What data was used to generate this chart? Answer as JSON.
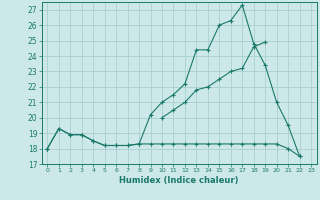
{
  "xlabel": "Humidex (Indice chaleur)",
  "background_color": "#cce8e8",
  "grid_color": "#aad0d0",
  "line_color": "#1a7a6a",
  "xlim": [
    -0.5,
    23.5
  ],
  "ylim": [
    17,
    27.5
  ],
  "xticks": [
    0,
    1,
    2,
    3,
    4,
    5,
    6,
    7,
    8,
    9,
    10,
    11,
    12,
    13,
    14,
    15,
    16,
    17,
    18,
    19,
    20,
    21,
    22,
    23
  ],
  "yticks": [
    17,
    18,
    19,
    20,
    21,
    22,
    23,
    24,
    25,
    26,
    27
  ],
  "series": [
    [
      18.0,
      19.3,
      18.9,
      18.9,
      18.5,
      18.2,
      18.2,
      18.2,
      18.3,
      20.2,
      21.0,
      21.5,
      22.2,
      24.4,
      24.4,
      26.0,
      26.3,
      27.3,
      24.8,
      23.4,
      21.0,
      19.5,
      17.5,
      null
    ],
    [
      18.0,
      19.3,
      18.9,
      18.9,
      18.5,
      18.2,
      18.2,
      18.2,
      18.3,
      18.3,
      18.3,
      18.3,
      18.3,
      18.3,
      18.3,
      18.3,
      18.3,
      18.3,
      18.3,
      18.3,
      18.3,
      18.0,
      17.5,
      null
    ],
    [
      18.0,
      null,
      null,
      null,
      null,
      null,
      null,
      null,
      null,
      null,
      20.0,
      20.5,
      21.0,
      21.8,
      22.0,
      22.5,
      23.0,
      23.2,
      24.6,
      24.9,
      null,
      null,
      null,
      null
    ]
  ]
}
